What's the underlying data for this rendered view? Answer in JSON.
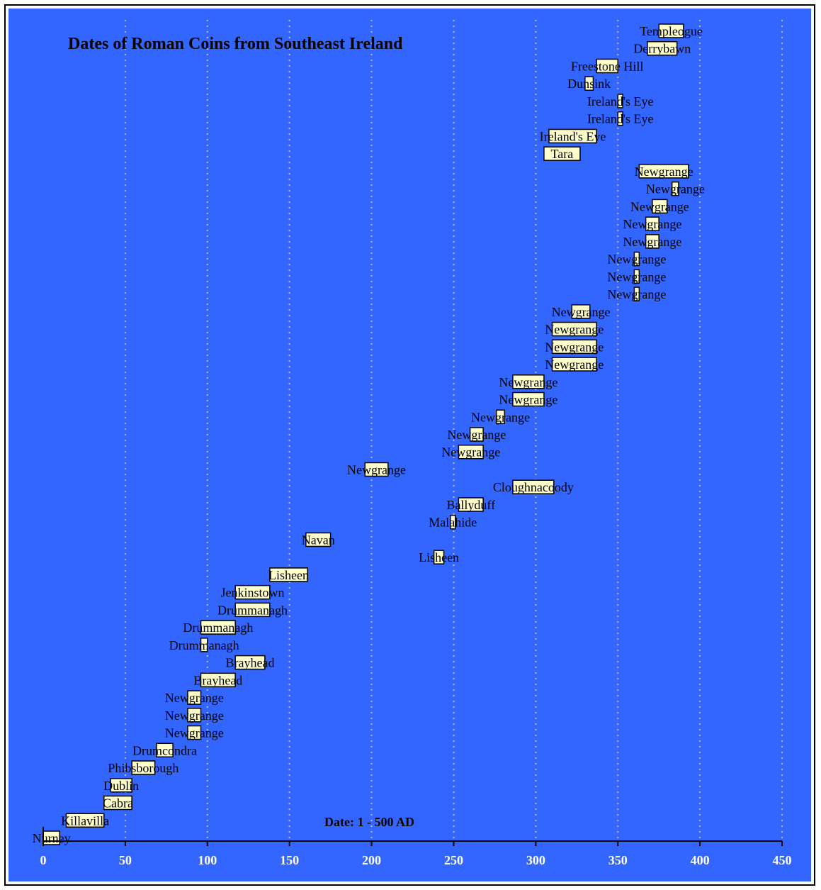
{
  "chart_data": {
    "type": "bar",
    "subtype": "floating-range",
    "title": "Dates of Roman Coins from Southeast Ireland",
    "xlabel": "Date: 1 - 500 AD",
    "ylabel": "",
    "xlim": [
      0,
      450
    ],
    "x_ticks": [
      0,
      50,
      100,
      150,
      200,
      250,
      300,
      350,
      400,
      450
    ],
    "grid": "vertical dotted",
    "colors": {
      "background": "#3366FF",
      "bar_fill": "#FFFFCC",
      "bar_stroke": "#000000",
      "grid": "#C0C0C0",
      "axis": "#000000",
      "tick_text": "#FFFFFF"
    },
    "series": [
      {
        "label": "Templeogue",
        "start": 375,
        "end": 390
      },
      {
        "label": "Derrybawn",
        "start": 368,
        "end": 386
      },
      {
        "label": "Freestone Hill",
        "start": 337,
        "end": 350
      },
      {
        "label": "Dunsink",
        "start": 330,
        "end": 335
      },
      {
        "label": "Ireland's Eye",
        "start": 350,
        "end": 353
      },
      {
        "label": "Ireland's Eye",
        "start": 350,
        "end": 353
      },
      {
        "label": "Ireland's Eye",
        "start": 308,
        "end": 337
      },
      {
        "label": "Tara",
        "start": 305,
        "end": 327
      },
      {
        "label": "Newgrange",
        "start": 363,
        "end": 393
      },
      {
        "label": "Newgrange",
        "start": 383,
        "end": 387
      },
      {
        "label": "Newgrange",
        "start": 371,
        "end": 380
      },
      {
        "label": "Newgrange",
        "start": 367,
        "end": 375
      },
      {
        "label": "Newgrange",
        "start": 367,
        "end": 375
      },
      {
        "label": "Newgrange",
        "start": 360,
        "end": 363
      },
      {
        "label": "Newgrange",
        "start": 360,
        "end": 363
      },
      {
        "label": "Newgrange",
        "start": 360,
        "end": 363
      },
      {
        "label": "Newgrange",
        "start": 322,
        "end": 333
      },
      {
        "label": "Newgrange",
        "start": 310,
        "end": 337
      },
      {
        "label": "Newgrange",
        "start": 310,
        "end": 337
      },
      {
        "label": "Newgrange",
        "start": 310,
        "end": 337
      },
      {
        "label": "Newgrange",
        "start": 286,
        "end": 305
      },
      {
        "label": "Newgrange",
        "start": 286,
        "end": 305
      },
      {
        "label": "Newgrange",
        "start": 276,
        "end": 281
      },
      {
        "label": "Newgrange",
        "start": 260,
        "end": 268
      },
      {
        "label": "Newgrange",
        "start": 253,
        "end": 268
      },
      {
        "label": "Newgrange",
        "start": 196,
        "end": 210
      },
      {
        "label": "Cloughnacoody",
        "start": 286,
        "end": 311
      },
      {
        "label": "Ballyduff",
        "start": 253,
        "end": 268
      },
      {
        "label": "Malahide",
        "start": 248,
        "end": 251
      },
      {
        "label": "Navan",
        "start": 160,
        "end": 175
      },
      {
        "label": "Lisheen",
        "start": 238,
        "end": 244
      },
      {
        "label": "Lisheen",
        "start": 138,
        "end": 161
      },
      {
        "label": "Jenkinstown",
        "start": 117,
        "end": 138
      },
      {
        "label": "Drummanagh",
        "start": 117,
        "end": 138
      },
      {
        "label": "Drummanagh",
        "start": 96,
        "end": 117
      },
      {
        "label": "Drummanagh",
        "start": 96,
        "end": 100
      },
      {
        "label": "Brayhead",
        "start": 117,
        "end": 135
      },
      {
        "label": "Brayhead",
        "start": 96,
        "end": 117
      },
      {
        "label": "Newgrange",
        "start": 88,
        "end": 96
      },
      {
        "label": "Newgrange",
        "start": 88,
        "end": 96
      },
      {
        "label": "Newgrange",
        "start": 88,
        "end": 96
      },
      {
        "label": "Drumcondra",
        "start": 69,
        "end": 79
      },
      {
        "label": "Phibsborough",
        "start": 54,
        "end": 68
      },
      {
        "label": "Dublin",
        "start": 41,
        "end": 54
      },
      {
        "label": "Cabra",
        "start": 37,
        "end": 54
      },
      {
        "label": "Killavilla",
        "start": 14,
        "end": 37
      },
      {
        "label": "Nurney",
        "start": 0,
        "end": 10
      }
    ]
  }
}
